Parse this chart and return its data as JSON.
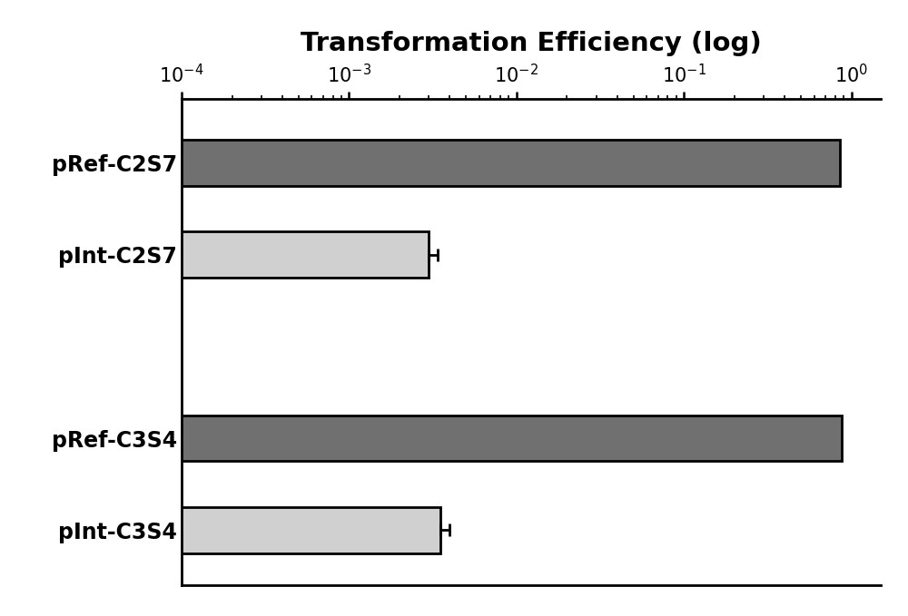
{
  "title": "Transformation Efficiency (log)",
  "categories": [
    "pInt-C3S4",
    "pRef-C3S4",
    "",
    "pInt-C2S7",
    "pRef-C2S7"
  ],
  "values": [
    0.0035,
    0.88,
    null,
    0.003,
    0.85
  ],
  "errors": [
    0.0005,
    0,
    0,
    0.0004,
    0
  ],
  "bar_colors": [
    "#d0d0d0",
    "#707070",
    null,
    "#d0d0d0",
    "#707070"
  ],
  "bar_edgecolor": "#000000",
  "xlim_log": [
    0.0001,
    1.5
  ],
  "xticks": [
    0.0001,
    0.001,
    0.01,
    0.1,
    1.0
  ],
  "background_color": "#ffffff",
  "title_fontsize": 21,
  "label_fontsize": 17,
  "tick_fontsize": 15,
  "bar_linewidth": 2.0,
  "bar_height": 0.5
}
